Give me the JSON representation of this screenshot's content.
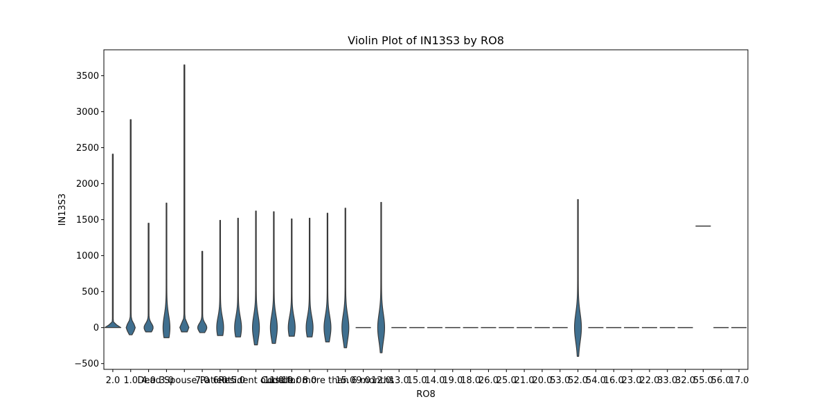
{
  "chart_data": {
    "type": "violin",
    "title": "Violin Plot of IN13S3 by RO8",
    "xlabel": "RO8",
    "ylabel": "IN13S3",
    "ylim": [
      -580,
      3860
    ],
    "yticks": [
      -500,
      0,
      500,
      1000,
      1500,
      2000,
      2500,
      3000,
      3500
    ],
    "violin_color": "#3f6f8f",
    "edge_color": "#3a3a3a",
    "categories": [
      {
        "label": "2.0",
        "min": 0,
        "max": 2410,
        "kind": "pad"
      },
      {
        "label": "1.0",
        "min": -100,
        "max": 2890,
        "kind": "drop"
      },
      {
        "label": "4.0",
        "min": -60,
        "max": 1450,
        "kind": "drop"
      },
      {
        "label": "3.0",
        "min": -140,
        "max": 1730,
        "kind": "thin"
      },
      {
        "label": "Dead Spouse/Patient",
        "min": -60,
        "max": 3650,
        "kind": "drop"
      },
      {
        "label": "7.0",
        "min": -70,
        "max": 1060,
        "kind": "drop"
      },
      {
        "label": "6.0",
        "min": -110,
        "max": 1490,
        "kind": "thin"
      },
      {
        "label": "5.0",
        "min": -130,
        "max": 1520,
        "kind": "thin"
      },
      {
        "label": "Resident outside",
        "min": -240,
        "max": 1620,
        "kind": "thin"
      },
      {
        "label": "11.0",
        "min": -220,
        "max": 1610,
        "kind": "thin"
      },
      {
        "label": "10.0",
        "min": -120,
        "max": 1510,
        "kind": "thin"
      },
      {
        "label": "8.0",
        "min": -130,
        "max": 1520,
        "kind": "thin"
      },
      {
        "label": "Code for more than 6 months",
        "min": -200,
        "max": 1590,
        "kind": "thin"
      },
      {
        "label": "15.0",
        "min": -280,
        "max": 1660,
        "kind": "thin"
      },
      {
        "label": "9.0",
        "min": 0,
        "max": 0,
        "kind": "flat"
      },
      {
        "label": "12.0",
        "min": -350,
        "max": 1740,
        "kind": "thin"
      },
      {
        "label": "13.0",
        "min": 0,
        "max": 0,
        "kind": "flat"
      },
      {
        "label": "15.0",
        "min": 0,
        "max": 0,
        "kind": "flat"
      },
      {
        "label": "14.0",
        "min": 0,
        "max": 0,
        "kind": "flat"
      },
      {
        "label": "19.0",
        "min": 0,
        "max": 0,
        "kind": "flat"
      },
      {
        "label": "18.0",
        "min": 0,
        "max": 0,
        "kind": "flat"
      },
      {
        "label": "26.0",
        "min": 0,
        "max": 0,
        "kind": "flat"
      },
      {
        "label": "25.0",
        "min": 0,
        "max": 0,
        "kind": "flat"
      },
      {
        "label": "21.0",
        "min": 0,
        "max": 0,
        "kind": "flat"
      },
      {
        "label": "20.0",
        "min": 0,
        "max": 0,
        "kind": "flat"
      },
      {
        "label": "53.0",
        "min": 0,
        "max": 0,
        "kind": "flat"
      },
      {
        "label": "52.0",
        "min": -400,
        "max": 1780,
        "kind": "thin"
      },
      {
        "label": "54.0",
        "min": 0,
        "max": 0,
        "kind": "flat"
      },
      {
        "label": "16.0",
        "min": 0,
        "max": 0,
        "kind": "flat"
      },
      {
        "label": "23.0",
        "min": 0,
        "max": 0,
        "kind": "flat"
      },
      {
        "label": "22.0",
        "min": 0,
        "max": 0,
        "kind": "flat"
      },
      {
        "label": "33.0",
        "min": 0,
        "max": 0,
        "kind": "flat"
      },
      {
        "label": "32.0",
        "min": 0,
        "max": 0,
        "kind": "flat"
      },
      {
        "label": "55.0",
        "min": 1410,
        "max": 1410,
        "kind": "flat"
      },
      {
        "label": "56.0",
        "min": 0,
        "max": 0,
        "kind": "flat"
      },
      {
        "label": "17.0",
        "min": 0,
        "max": 0,
        "kind": "flat"
      }
    ]
  }
}
